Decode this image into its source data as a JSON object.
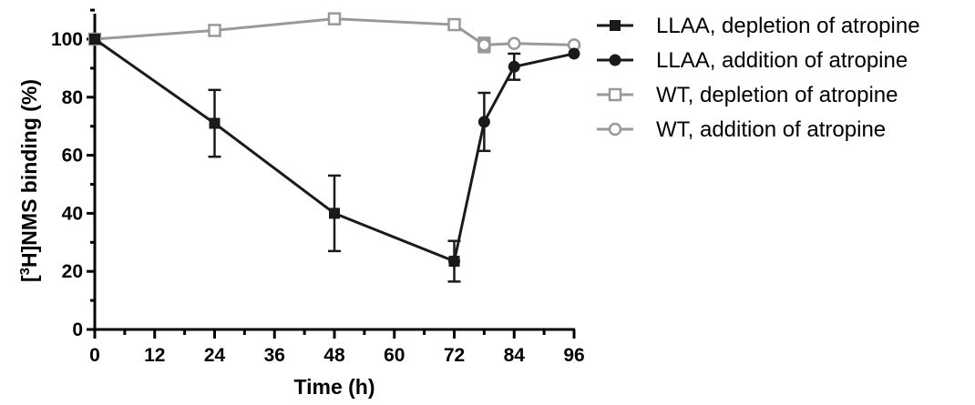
{
  "chart_data": {
    "type": "line",
    "title": "",
    "xlabel": "Time (h)",
    "ylabel_parts": {
      "prefix": "[",
      "sup": "3",
      "rest": "H]NMS binding (%)"
    },
    "xlim": [
      0,
      96
    ],
    "ylim": [
      0,
      110
    ],
    "x_ticks": [
      0,
      12,
      24,
      36,
      48,
      60,
      72,
      84,
      96
    ],
    "x_tick_labels": [
      "0",
      "12",
      "24",
      "36",
      "48",
      "60",
      "72",
      "84",
      "96"
    ],
    "y_ticks": [
      0,
      20,
      40,
      60,
      80,
      100
    ],
    "y_tick_labels": [
      "0",
      "20",
      "40",
      "60",
      "80",
      "100"
    ],
    "legend_position": "right",
    "series": [
      {
        "name": "WT, depletion of atropine",
        "color": "#999999",
        "marker": "open-square",
        "x": [
          0,
          24,
          48,
          72,
          78
        ],
        "y": [
          100,
          103,
          107,
          105,
          98
        ],
        "err": [
          0,
          0,
          0,
          1.5,
          2.5
        ]
      },
      {
        "name": "WT, addition of atropine",
        "color": "#999999",
        "marker": "open-circle",
        "x": [
          78,
          84,
          96
        ],
        "y": [
          98,
          98.5,
          98
        ],
        "err": [
          0,
          0,
          0
        ]
      },
      {
        "name": "LLAA, depletion of atropine",
        "color": "#1a1a1a",
        "marker": "filled-square",
        "x": [
          0,
          24,
          48,
          72
        ],
        "y": [
          100,
          71,
          40,
          23.5
        ],
        "err": [
          0,
          11.5,
          13,
          7
        ]
      },
      {
        "name": "LLAA, addition of atropine",
        "color": "#1a1a1a",
        "marker": "filled-circle",
        "x": [
          72,
          78,
          84,
          96
        ],
        "y": [
          23.5,
          71.5,
          90.5,
          95
        ],
        "err": [
          0,
          10,
          4.5,
          0
        ]
      }
    ],
    "legend_order": [
      2,
      3,
      0,
      1
    ]
  }
}
